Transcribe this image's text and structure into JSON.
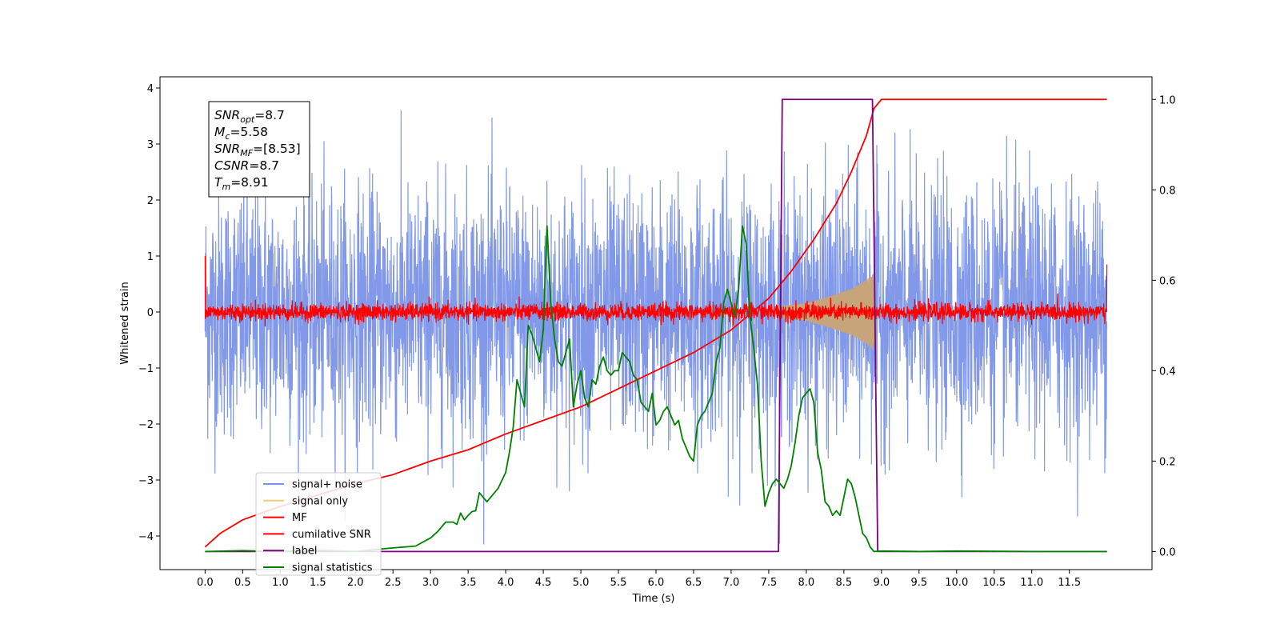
{
  "chart_data": {
    "type": "line",
    "title": "",
    "xlabel": "Time (s)",
    "ylabel": "Whitened strain",
    "xlim": [
      -0.6,
      12.6
    ],
    "ylim": [
      -4.6,
      4.2
    ],
    "y2lim": [
      -0.04,
      1.05
    ],
    "xticks": [
      0.0,
      0.5,
      1.0,
      1.5,
      2.0,
      2.5,
      3.0,
      3.5,
      4.0,
      4.5,
      5.0,
      5.5,
      6.0,
      6.5,
      7.0,
      7.5,
      8.0,
      8.5,
      9.0,
      9.5,
      10.0,
      10.5,
      11.0,
      11.5
    ],
    "xtick_labels": [
      "0.0",
      "0.5",
      "1.0",
      "1.5",
      "2.0",
      "2.5",
      "3.0",
      "3.5",
      "4.0",
      "4.5",
      "5.0",
      "5.5",
      "6.0",
      "6.5",
      "7.0",
      "7.5",
      "8.0",
      "8.5",
      "9.0",
      "9.5",
      "10.0",
      "10.5",
      "11.0",
      "11.5"
    ],
    "yticks": [
      -4,
      -3,
      -2,
      -1,
      0,
      1,
      2,
      3,
      4
    ],
    "ytick_labels": [
      "−4",
      "−3",
      "−2",
      "−1",
      "0",
      "1",
      "2",
      "3",
      "4"
    ],
    "y2ticks": [
      0.0,
      0.2,
      0.4,
      0.6,
      0.8,
      1.0
    ],
    "y2tick_labels": [
      "0.0",
      "0.2",
      "0.4",
      "0.6",
      "0.8",
      "1.0"
    ],
    "legend_position": "lower-left",
    "grid": false,
    "annotation": {
      "lines": [
        {
          "base": "SNR",
          "sub": "opt",
          "rest": "=8.7"
        },
        {
          "base": "M",
          "sub": "c",
          "rest": "=5.58"
        },
        {
          "base": "SNR",
          "sub": "MF",
          "rest": "=[8.53]"
        },
        {
          "base": "CSNR",
          "sub": "",
          "rest": "=8.7"
        },
        {
          "base": "T",
          "sub": "m",
          "rest": "=8.91"
        }
      ]
    },
    "series": [
      {
        "name": "signal+ noise",
        "color": "#7b94e8",
        "axis": "left",
        "kind": "noise",
        "x_range": [
          0.0,
          12.0
        ],
        "amplitude": 2.0,
        "min": -4.15,
        "max": 3.85
      },
      {
        "name": "signal only",
        "color": "#f5c97a",
        "axis": "left",
        "kind": "chirp",
        "x_range": [
          7.6,
          8.9
        ],
        "envelope": [
          [
            7.6,
            0.1
          ],
          [
            8.0,
            0.16
          ],
          [
            8.3,
            0.28
          ],
          [
            8.6,
            0.42
          ],
          [
            8.8,
            0.58
          ],
          [
            8.9,
            0.7
          ]
        ]
      },
      {
        "name": "MF",
        "color": "#ff0000",
        "axis": "left",
        "kind": "noise",
        "x_range": [
          0.0,
          12.0
        ],
        "amplitude": 0.14,
        "endpoints": [
          1.0,
          0.85
        ]
      },
      {
        "name": "cumilative SNR",
        "color": "#ff0000",
        "axis": "right",
        "kind": "line",
        "x": [
          0.0,
          0.2,
          0.5,
          1.0,
          1.5,
          2.0,
          2.5,
          3.0,
          3.5,
          4.0,
          4.5,
          5.0,
          5.5,
          6.0,
          6.5,
          7.0,
          7.5,
          7.8,
          8.1,
          8.4,
          8.6,
          8.8,
          8.9,
          9.0,
          12.0
        ],
        "y": [
          0.01,
          0.04,
          0.07,
          0.1,
          0.125,
          0.15,
          0.17,
          0.2,
          0.225,
          0.26,
          0.29,
          0.32,
          0.36,
          0.4,
          0.44,
          0.49,
          0.56,
          0.62,
          0.69,
          0.77,
          0.84,
          0.92,
          0.98,
          1.0,
          1.0
        ]
      },
      {
        "name": "label",
        "color": "#800080",
        "axis": "right",
        "kind": "line",
        "x": [
          0.0,
          7.63,
          7.68,
          8.88,
          8.95,
          12.0
        ],
        "y": [
          0.0,
          0.0,
          1.0,
          1.0,
          0.0,
          0.0
        ]
      },
      {
        "name": "signal statistics",
        "color": "#008000",
        "axis": "right",
        "kind": "line",
        "x": [
          0.0,
          0.5,
          1.0,
          1.5,
          2.0,
          2.5,
          2.8,
          3.0,
          3.1,
          3.2,
          3.3,
          3.35,
          3.4,
          3.45,
          3.5,
          3.55,
          3.6,
          3.65,
          3.7,
          3.75,
          3.8,
          3.9,
          4.0,
          4.05,
          4.1,
          4.15,
          4.2,
          4.25,
          4.3,
          4.35,
          4.4,
          4.45,
          4.5,
          4.55,
          4.6,
          4.65,
          4.7,
          4.75,
          4.8,
          4.85,
          4.9,
          4.95,
          5.0,
          5.05,
          5.1,
          5.15,
          5.2,
          5.25,
          5.3,
          5.35,
          5.4,
          5.45,
          5.5,
          5.55,
          5.6,
          5.65,
          5.7,
          5.75,
          5.8,
          5.85,
          5.9,
          5.95,
          6.0,
          6.05,
          6.1,
          6.15,
          6.2,
          6.25,
          6.3,
          6.35,
          6.4,
          6.45,
          6.5,
          6.55,
          6.6,
          6.65,
          6.7,
          6.75,
          6.8,
          6.85,
          6.9,
          6.95,
          7.0,
          7.05,
          7.1,
          7.15,
          7.2,
          7.25,
          7.3,
          7.35,
          7.4,
          7.45,
          7.5,
          7.55,
          7.6,
          7.65,
          7.7,
          7.75,
          7.8,
          7.85,
          7.9,
          7.95,
          8.0,
          8.05,
          8.1,
          8.15,
          8.2,
          8.25,
          8.3,
          8.35,
          8.4,
          8.45,
          8.5,
          8.55,
          8.6,
          8.65,
          8.7,
          8.75,
          8.8,
          8.85,
          8.9,
          9.0,
          9.5,
          10.0,
          11.0,
          12.0
        ],
        "y": [
          0.0,
          0.002,
          0.0,
          0.003,
          0.0,
          0.008,
          0.012,
          0.03,
          0.045,
          0.065,
          0.065,
          0.06,
          0.085,
          0.07,
          0.08,
          0.088,
          0.09,
          0.13,
          0.12,
          0.11,
          0.12,
          0.14,
          0.175,
          0.22,
          0.275,
          0.38,
          0.35,
          0.32,
          0.5,
          0.48,
          0.45,
          0.42,
          0.49,
          0.72,
          0.55,
          0.47,
          0.42,
          0.41,
          0.44,
          0.47,
          0.32,
          0.37,
          0.4,
          0.34,
          0.32,
          0.38,
          0.37,
          0.41,
          0.43,
          0.4,
          0.39,
          0.4,
          0.4,
          0.44,
          0.43,
          0.42,
          0.39,
          0.38,
          0.33,
          0.32,
          0.31,
          0.35,
          0.28,
          0.29,
          0.31,
          0.32,
          0.3,
          0.28,
          0.29,
          0.25,
          0.23,
          0.21,
          0.2,
          0.28,
          0.3,
          0.31,
          0.33,
          0.35,
          0.42,
          0.45,
          0.55,
          0.58,
          0.55,
          0.52,
          0.58,
          0.72,
          0.68,
          0.52,
          0.45,
          0.37,
          0.2,
          0.1,
          0.13,
          0.15,
          0.16,
          0.15,
          0.14,
          0.16,
          0.19,
          0.24,
          0.3,
          0.34,
          0.35,
          0.36,
          0.33,
          0.22,
          0.18,
          0.11,
          0.1,
          0.08,
          0.09,
          0.08,
          0.12,
          0.16,
          0.15,
          0.12,
          0.08,
          0.04,
          0.03,
          0.01,
          0.0,
          0.001,
          0.0,
          0.001,
          0.0,
          0.0
        ]
      }
    ]
  }
}
